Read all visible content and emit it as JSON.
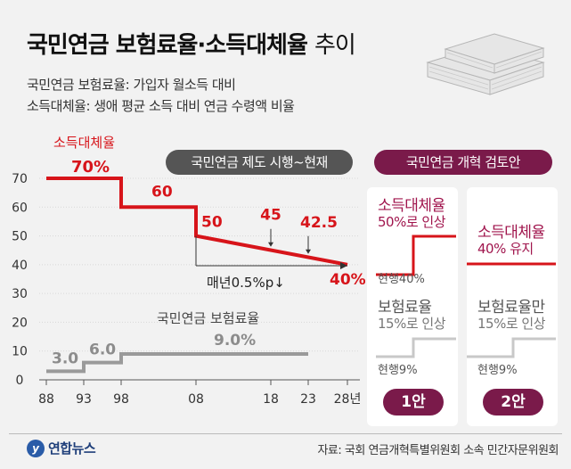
{
  "title": {
    "bold": "국민연금 보험료율·소득대체율",
    "rest": "추이"
  },
  "subtitle_lines": [
    "국민연금 보험료율: 가입자 월소득 대비",
    "소득대체율: 생애 평균 소득 대비 연금 수령액 비율"
  ],
  "pills": {
    "current": "국민연금 제도 시행~현재",
    "reform": "국민연금 개혁 검토안"
  },
  "chart_data": {
    "type": "line",
    "x_ticks": [
      "88",
      "93",
      "98",
      "08",
      "18",
      "23",
      "28년"
    ],
    "ylim": [
      0,
      70
    ],
    "y_ticks": [
      0,
      10,
      20,
      30,
      40,
      50,
      60,
      70
    ],
    "series": [
      {
        "name": "소득대체율",
        "color": "#d7141a",
        "x": [
          1988,
          1998,
          1998,
          2008,
          2008,
          2028
        ],
        "y": [
          70,
          70,
          60,
          60,
          50,
          40
        ],
        "labels": [
          {
            "text": "소득대체율",
            "x": 1988,
            "y": 70
          },
          {
            "text": "70%",
            "x": 1988,
            "y": 70
          },
          {
            "text": "60",
            "x": 1998,
            "y": 60
          },
          {
            "text": "50",
            "x": 2008,
            "y": 50
          },
          {
            "text": "45",
            "x": 2018,
            "y": 45
          },
          {
            "text": "42.5",
            "x": 2023,
            "y": 42.5
          },
          {
            "text": "40%",
            "x": 2028,
            "y": 40
          }
        ]
      },
      {
        "name": "국민연금 보험료율",
        "color": "#9a9a9a",
        "x": [
          1988,
          1993,
          1993,
          1998,
          1998,
          2023
        ],
        "y": [
          3,
          3,
          6,
          6,
          9,
          9
        ],
        "labels": [
          {
            "text": "3.0",
            "x": 1988,
            "y": 3
          },
          {
            "text": "6.0",
            "x": 1993,
            "y": 6
          },
          {
            "text": "9.0%",
            "x": 2008,
            "y": 9
          }
        ]
      }
    ],
    "annotation": "매년0.5%p↓"
  },
  "plans": [
    {
      "badge": "1안",
      "replacement_title": "소득대체율",
      "replacement_sub": "50%로 인상",
      "replacement_current": "현행40%",
      "premium_title": "보험료율",
      "premium_sub": "15%로 인상",
      "premium_current": "현행9%"
    },
    {
      "badge": "2안",
      "replacement_title": "소득대체율",
      "replacement_sub": "40% 유지",
      "premium_title": "보험료율만",
      "premium_sub": "15%로 인상",
      "premium_current": "현행9%"
    }
  ],
  "colors": {
    "red": "#d7141a",
    "gray": "#9a9a9a",
    "dark_pill": "#555555",
    "reform_pill": "#7a1a4a"
  },
  "source": "자료: 국회 연금개혁특별위원회 소속 민간자문위원회",
  "logo": "연합뉴스"
}
